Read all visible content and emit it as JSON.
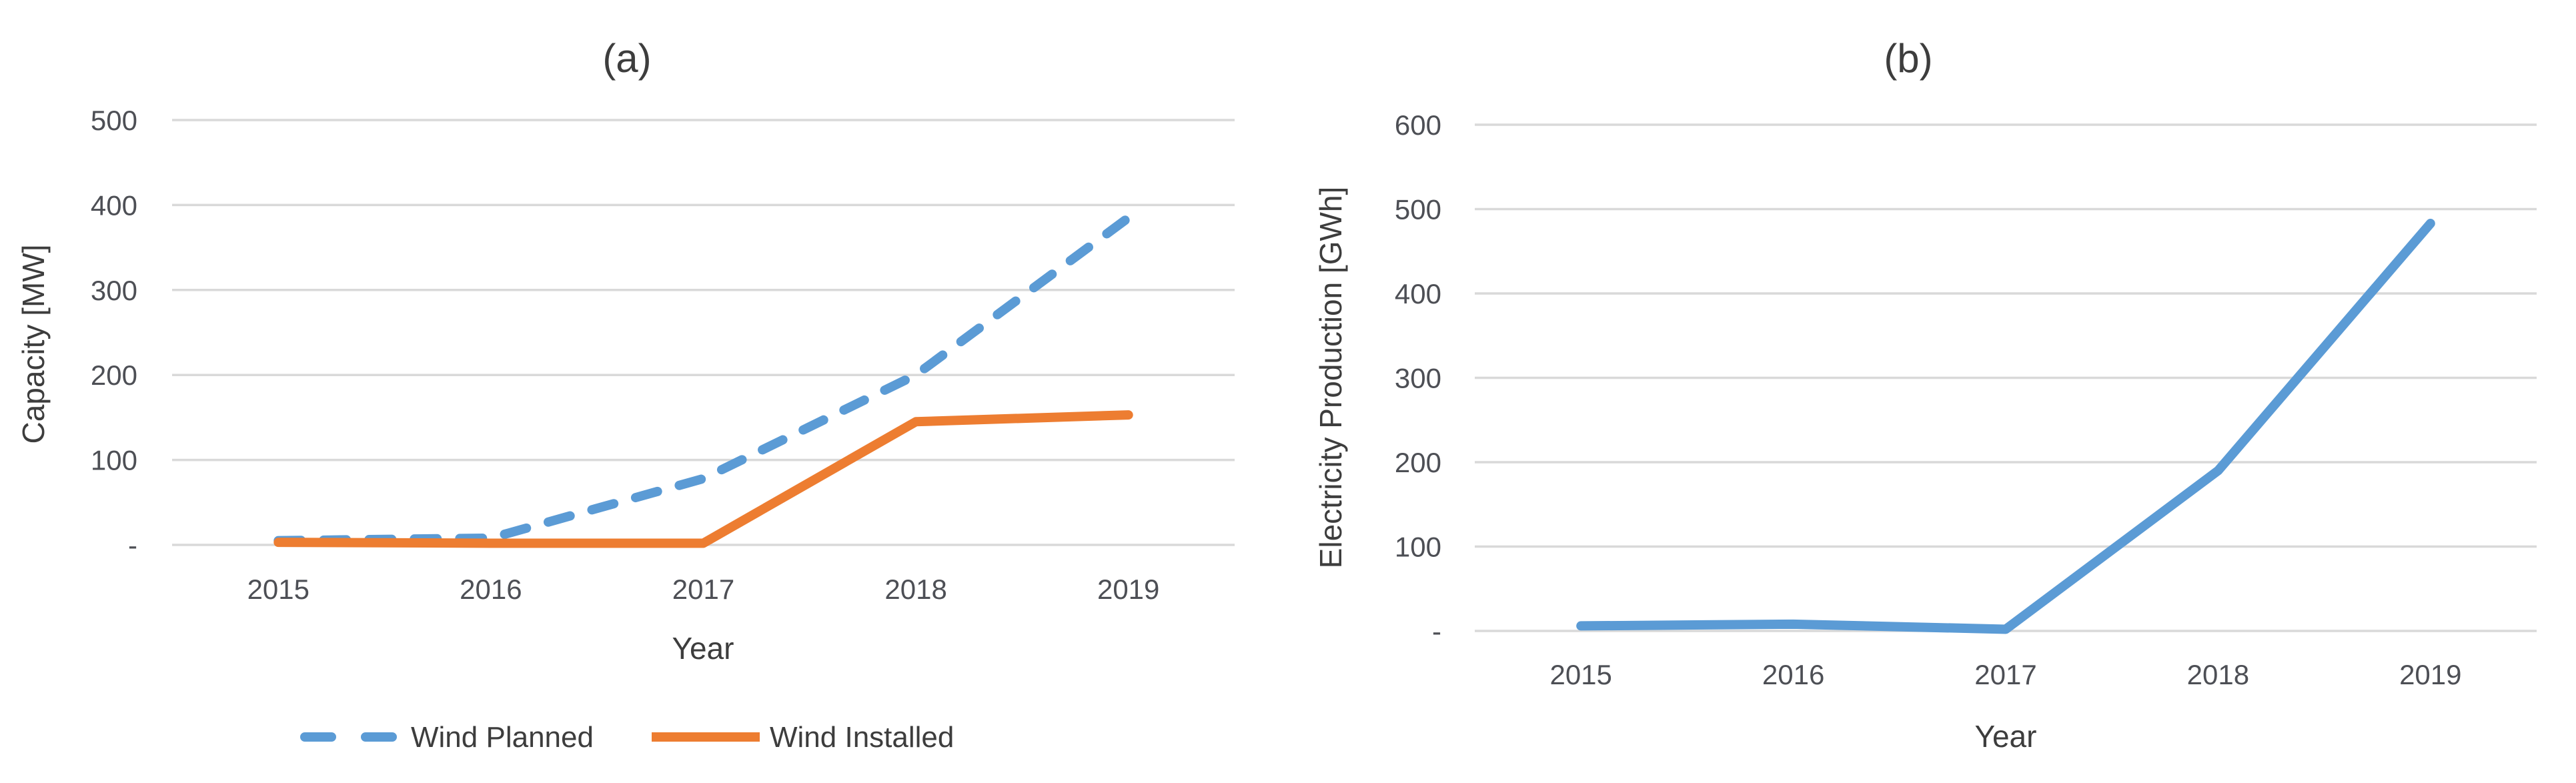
{
  "figure": {
    "background": "#ffffff",
    "panels": 2
  },
  "colors": {
    "series_blue": "#5B9BD5",
    "series_orange": "#ED7D31",
    "gridline": "#D9D9D9",
    "tick_text": "#4d4f55",
    "label_text": "#3d3d3d"
  },
  "chart_data": [
    {
      "type": "line",
      "title": "(a)",
      "xlabel": "Year",
      "ylabel": "Capacity [MW]",
      "categories": [
        "2015",
        "2016",
        "2017",
        "2018",
        "2019"
      ],
      "series": [
        {
          "name": "Wind Planned",
          "style": "dashed",
          "color": "#5B9BD5",
          "values": [
            5,
            8,
            78,
            200,
            385
          ]
        },
        {
          "name": "Wind Installed",
          "style": "solid",
          "color": "#ED7D31",
          "values": [
            3,
            2,
            2,
            145,
            153
          ]
        }
      ],
      "ylim": [
        0,
        500
      ],
      "ytick_step": 100,
      "ytick_labels": [
        "-",
        "100",
        "200",
        "300",
        "400",
        "500"
      ],
      "grid": true,
      "legend_position": "bottom"
    },
    {
      "type": "line",
      "title": "(b)",
      "xlabel": "Year",
      "ylabel": "Electricity Production [GWh]",
      "categories": [
        "2015",
        "2016",
        "2017",
        "2018",
        "2019"
      ],
      "series": [
        {
          "style": "solid",
          "color": "#5B9BD5",
          "values": [
            6,
            8,
            2,
            190,
            483
          ]
        }
      ],
      "ylim": [
        0,
        600
      ],
      "ytick_step": 100,
      "ytick_labels": [
        "-",
        "100",
        "200",
        "300",
        "400",
        "500",
        "600"
      ],
      "grid": true,
      "legend_position": "none"
    }
  ]
}
